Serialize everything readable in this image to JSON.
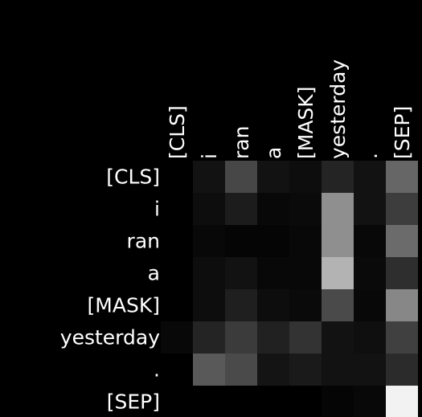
{
  "chart_data": {
    "type": "heatmap",
    "title": "",
    "xlabel": "",
    "ylabel": "",
    "colormap": "gray",
    "background_color": "#000000",
    "label_color": "#ffffff",
    "x_labels": [
      "[CLS]",
      "i",
      "ran",
      "a",
      "[MASK]",
      "yesterday",
      ".",
      "[SEP]"
    ],
    "y_labels": [
      "[CLS]",
      "i",
      "ran",
      "a",
      "[MASK]",
      "yesterday",
      ".",
      "[SEP]"
    ],
    "value_range": [
      0,
      1
    ],
    "values": [
      [
        0.0,
        0.07,
        0.28,
        0.07,
        0.05,
        0.14,
        0.07,
        0.4
      ],
      [
        0.0,
        0.05,
        0.11,
        0.03,
        0.04,
        0.56,
        0.07,
        0.24
      ],
      [
        0.0,
        0.03,
        0.02,
        0.02,
        0.03,
        0.56,
        0.03,
        0.42
      ],
      [
        0.0,
        0.05,
        0.07,
        0.03,
        0.03,
        0.7,
        0.04,
        0.18
      ],
      [
        0.0,
        0.05,
        0.12,
        0.05,
        0.04,
        0.29,
        0.03,
        0.53
      ],
      [
        0.03,
        0.14,
        0.23,
        0.13,
        0.2,
        0.07,
        0.06,
        0.25
      ],
      [
        0.0,
        0.35,
        0.29,
        0.08,
        0.1,
        0.07,
        0.07,
        0.17
      ],
      [
        0.0,
        0.0,
        0.0,
        0.0,
        0.0,
        0.02,
        0.03,
        0.95
      ]
    ]
  }
}
